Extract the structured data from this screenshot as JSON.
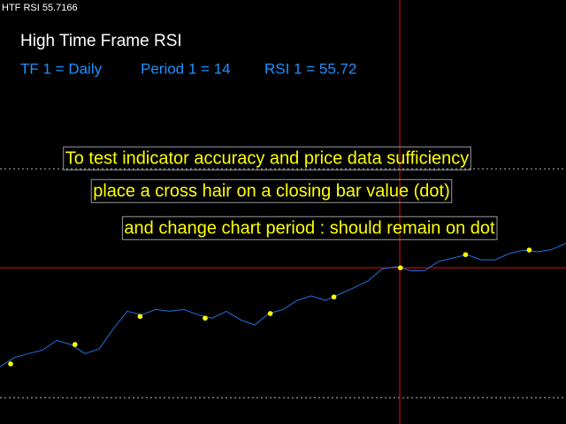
{
  "chart_data": {
    "type": "line",
    "window_label": "HTF RSI 55.7166",
    "title": "High Time Frame RSI",
    "info": [
      "TF 1 = Daily",
      "Period 1 = 14",
      "RSI 1 = 55.72"
    ],
    "annotations": [
      "To test indicator accuracy and price data sufficiency",
      "place a cross hair on a closing bar value (dot)",
      "and change chart period  :  should remain on dot"
    ],
    "xlim": [
      0,
      40
    ],
    "ylim": [
      25.4,
      99.5
    ],
    "levels": [
      70,
      30
    ],
    "crosshair": {
      "x": 28.25,
      "y": 52.7
    },
    "series": [
      {
        "color": "#1e73e0",
        "values": [
          35.4,
          37.0,
          37.7,
          38.3,
          40.0,
          39.3,
          37.7,
          38.5,
          42.0,
          45.1,
          44.5,
          45.4,
          45.1,
          45.4,
          44.5,
          43.9,
          45.1,
          43.6,
          42.7,
          44.7,
          45.4,
          47.0,
          47.8,
          47.0,
          48.1,
          49.2,
          50.4,
          52.5,
          52.9,
          52.2,
          52.2,
          53.8,
          54.4,
          55.0,
          54.1,
          54.1,
          55.2,
          55.8,
          55.5,
          55.9,
          57.0
        ]
      },
      {
        "color": "#ffff00",
        "x": [
          0.75,
          5.3,
          9.9,
          14.5,
          19.1,
          23.6,
          28.3,
          32.9,
          37.4
        ],
        "values": [
          35.9,
          39.3,
          44.2,
          43.9,
          44.7,
          47.6,
          52.7,
          55.0,
          55.8
        ]
      }
    ]
  }
}
